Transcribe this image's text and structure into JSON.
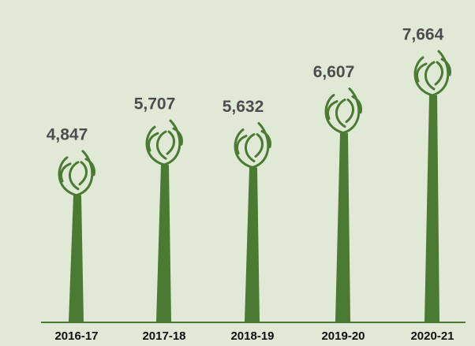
{
  "chart_data": {
    "type": "pictogram-bar",
    "categories": [
      "2016-17",
      "2017-18",
      "2018-19",
      "2019-20",
      "2020-21"
    ],
    "values": [
      4847,
      5707,
      5632,
      6607,
      7664
    ],
    "value_labels": [
      "4,847",
      "5,707",
      "5,632",
      "6,607",
      "7,664"
    ],
    "color": "#4b7a33"
  }
}
